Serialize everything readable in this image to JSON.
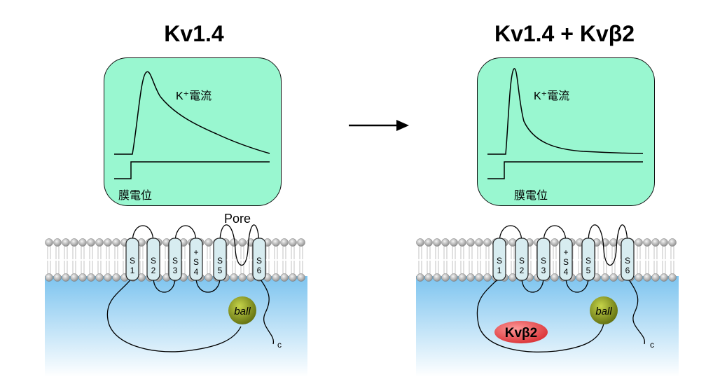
{
  "left": {
    "title": "Kv1.4",
    "current_label": "K⁺電流",
    "voltage_label": "膜電位",
    "pore_label": "Pore",
    "segments": [
      "S 1",
      "S 2",
      "S 3",
      "+ S 4",
      "S 5",
      "S 6"
    ],
    "ball_label": "ball",
    "c_label": "c"
  },
  "right": {
    "title": "Kv1.4 + Kvβ2",
    "current_label": "K⁺電流",
    "voltage_label": "膜電位",
    "segments": [
      "S 1",
      "S 2",
      "S 3",
      "+ S 4",
      "S 5",
      "S 6"
    ],
    "ball_label": "ball",
    "beta_label": "Kvβ2",
    "c_label": "c"
  },
  "colors": {
    "screen_bg": "#99f7d0",
    "cytoplasm": "#7dc4ef",
    "helix": "#d7ecf0",
    "ball": "#8a9b1c",
    "beta": "#e8454a"
  }
}
